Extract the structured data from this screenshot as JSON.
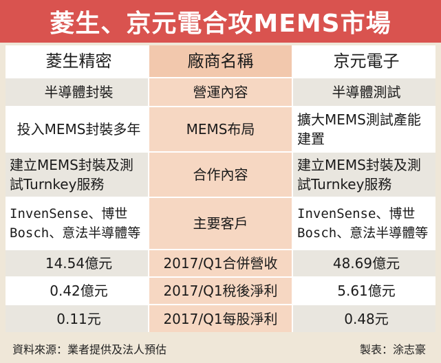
{
  "title": "菱生、京元電合攻MEMS市場",
  "header": {
    "left": "菱生精密",
    "mid": "廠商名稱",
    "right": "京元電子"
  },
  "rows": [
    {
      "left": "半導體封裝",
      "mid": "營運內容",
      "right": "半導體測試"
    },
    {
      "left": "投入MEMS封裝多年",
      "mid": "MEMS布局",
      "right": "擴大MEMS測試產能\n建置"
    },
    {
      "left": "建立MEMS封裝及測\n試Turnkey服務",
      "mid": "合作內容",
      "right": "建立MEMS封裝及測\n試Turnkey服務"
    },
    {
      "left": "InvenSense、博世\nBosch、意法半導體等",
      "mid": "主要客戶",
      "right": "InvenSense、博世\nBosch、意法半導體等"
    },
    {
      "left": "14.54億元",
      "mid": "2017/Q1合併營收",
      "right": "48.69億元"
    },
    {
      "left": "0.42億元",
      "mid": "2017/Q1稅後淨利",
      "right": "5.61億元"
    },
    {
      "left": "0.11元",
      "mid": "2017/Q1每股淨利",
      "right": "0.48元"
    }
  ],
  "footer": {
    "source": "資料來源：業者提供及法人預估",
    "credit": "製表：涂志豪"
  },
  "colors": {
    "title_bg": "#d9534f",
    "mid_col": "#f6d7c2",
    "shade": "#e9e6df",
    "frame": "#efe7d8"
  }
}
